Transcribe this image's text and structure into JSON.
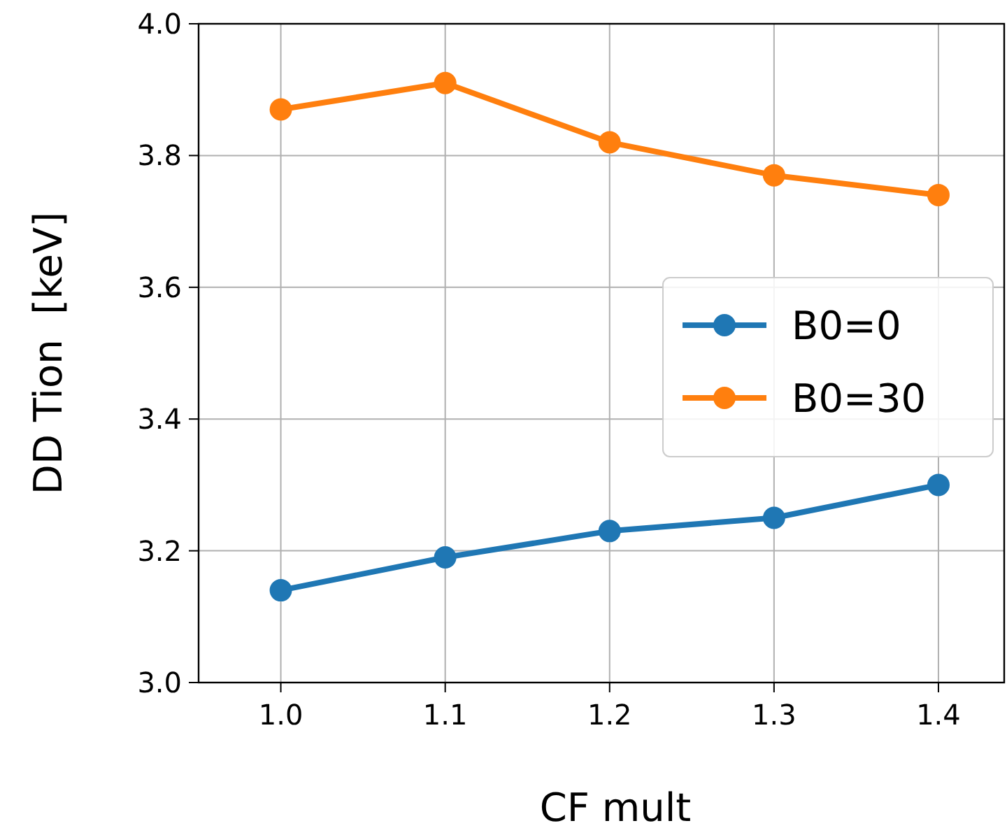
{
  "chart_data": {
    "type": "line",
    "xlabel": "CF mult",
    "ylabel": "DD Tion  [keV]",
    "x": [
      1.0,
      1.1,
      1.2,
      1.3,
      1.4
    ],
    "series": [
      {
        "name": "B0=0",
        "color": "#1f77b4",
        "values": [
          3.14,
          3.19,
          3.23,
          3.25,
          3.3
        ]
      },
      {
        "name": "B0=30",
        "color": "#ff7f0e",
        "values": [
          3.87,
          3.91,
          3.82,
          3.77,
          3.74
        ]
      }
    ],
    "xlim": [
      0.95,
      1.44
    ],
    "xticks": [
      {
        "value": 1.0,
        "label": "1.0"
      },
      {
        "value": 1.1,
        "label": "1.1"
      },
      {
        "value": 1.2,
        "label": "1.2"
      },
      {
        "value": 1.3,
        "label": "1.3"
      },
      {
        "value": 1.4,
        "label": "1.4"
      }
    ],
    "ylim": [
      3.0,
      4.0
    ],
    "yticks": [
      {
        "value": 3.0,
        "label": "3.0"
      },
      {
        "value": 3.2,
        "label": "3.2"
      },
      {
        "value": 3.4,
        "label": "3.4"
      },
      {
        "value": 3.6,
        "label": "3.6"
      },
      {
        "value": 3.8,
        "label": "3.8"
      },
      {
        "value": 4.0,
        "label": "4.0"
      }
    ],
    "grid": true,
    "legend": "right",
    "marker": "circle",
    "line_style": "solid"
  }
}
